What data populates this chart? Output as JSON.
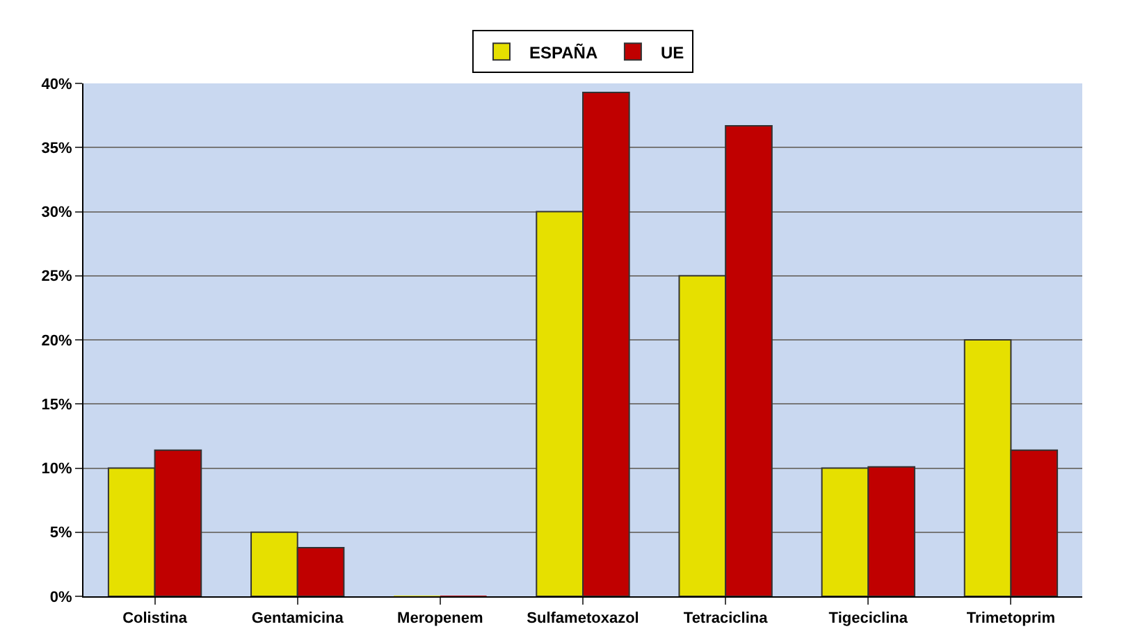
{
  "chart_data": {
    "type": "bar",
    "categories": [
      "Colistina",
      "Gentamicina",
      "Meropenem",
      "Sulfametoxazol",
      "Tetraciclina",
      "Tigeciclina",
      "Trimetoprim"
    ],
    "series": [
      {
        "name": "ESPAÑA",
        "color": "#e6e000",
        "values": [
          10,
          5,
          0,
          30,
          25,
          10,
          20
        ]
      },
      {
        "name": "UE",
        "color": "#c00000",
        "values": [
          11.4,
          3.8,
          0,
          39.3,
          36.7,
          10.1,
          11.4
        ]
      }
    ],
    "ylim": [
      0,
      40
    ],
    "yticks": [
      {
        "value": 0,
        "label": "0%"
      },
      {
        "value": 5,
        "label": "5%"
      },
      {
        "value": 10,
        "label": "10%"
      },
      {
        "value": 15,
        "label": "15%"
      },
      {
        "value": 20,
        "label": "20%"
      },
      {
        "value": 25,
        "label": "25%"
      },
      {
        "value": 30,
        "label": "30%"
      },
      {
        "value": 35,
        "label": "35%"
      },
      {
        "value": 40,
        "label": "40%"
      }
    ],
    "grid": "y",
    "legend": "top"
  }
}
